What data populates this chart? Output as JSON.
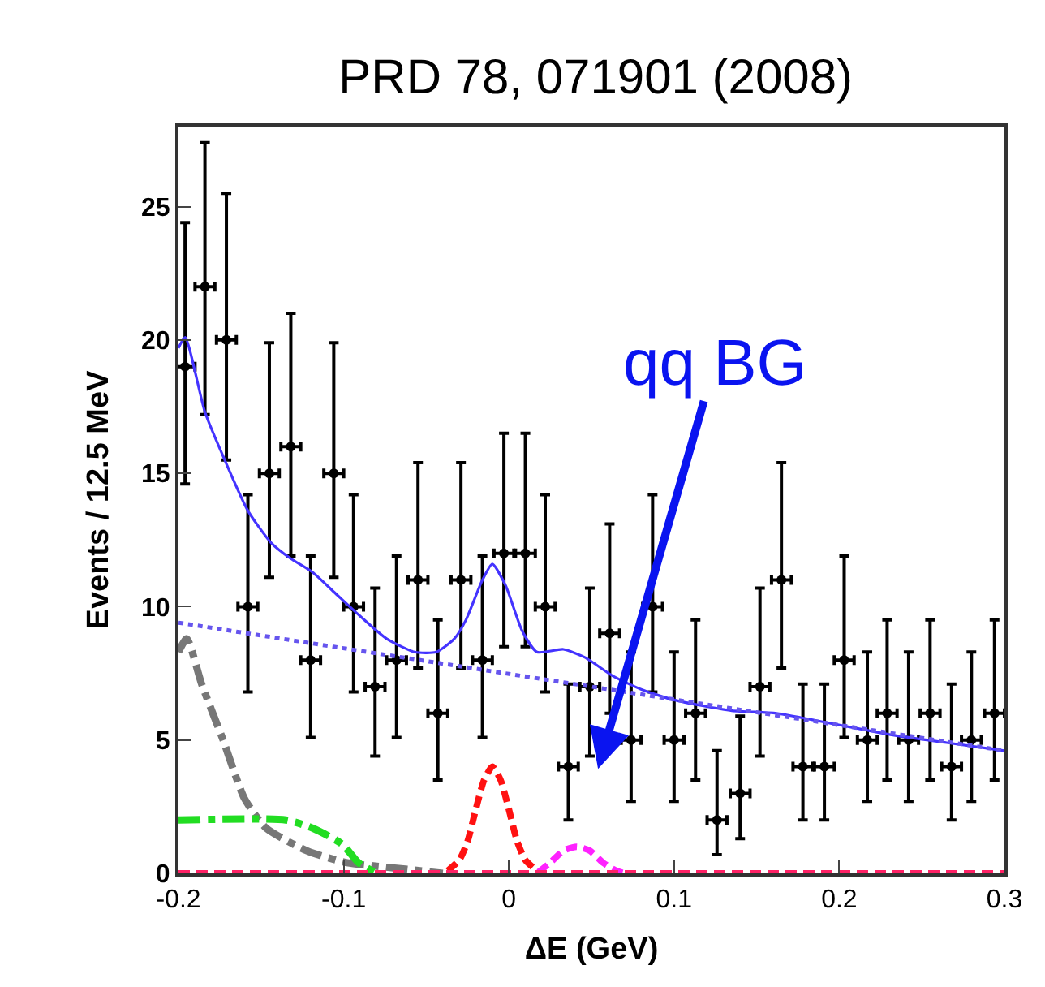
{
  "chart_data": {
    "type": "scatter",
    "title": "PRD 78, 071901 (2008)",
    "xlabel": "ΔE (GeV)",
    "ylabel": "Events / 12.5 MeV",
    "xlim": [
      -0.2,
      0.3
    ],
    "xticks": [
      -0.2,
      -0.1,
      0,
      0.1,
      0.2,
      0.3
    ],
    "ylim": [
      0,
      28
    ],
    "yticks": [
      0,
      5,
      10,
      15,
      20,
      25
    ],
    "annotations": [
      "qq BG"
    ],
    "series": [
      {
        "color": "#000000",
        "marker": "circle",
        "x": [
          -0.196,
          -0.184,
          -0.171,
          -0.158,
          -0.145,
          -0.132,
          -0.12,
          -0.106,
          -0.094,
          -0.081,
          -0.068,
          -0.055,
          -0.043,
          -0.029,
          -0.016,
          -0.003,
          0.01,
          0.022,
          0.036,
          0.049,
          0.061,
          0.074,
          0.087,
          0.1,
          0.113,
          0.126,
          0.14,
          0.152,
          0.165,
          0.178,
          0.191,
          0.203,
          0.217,
          0.229,
          0.242,
          0.255,
          0.268,
          0.28,
          0.294
        ],
        "values": [
          19,
          22,
          20,
          10,
          15,
          16,
          8,
          15,
          10,
          7,
          8,
          11,
          6,
          11,
          8,
          12,
          12,
          10,
          4,
          7,
          9,
          5,
          10,
          5,
          6,
          2,
          3,
          7,
          11,
          4,
          4,
          8,
          5,
          6,
          5,
          6,
          4,
          5,
          6
        ],
        "errors": [
          [
            14.6,
            24.4
          ],
          [
            17.2,
            27.4
          ],
          [
            15.5,
            25.5
          ],
          [
            6.8,
            14.2
          ],
          [
            11.1,
            19.9
          ],
          [
            11.9,
            21.0
          ],
          [
            5.1,
            11.9
          ],
          [
            11.1,
            19.9
          ],
          [
            6.8,
            14.2
          ],
          [
            4.4,
            10.7
          ],
          [
            5.1,
            11.9
          ],
          [
            7.7,
            15.4
          ],
          [
            3.5,
            9.5
          ],
          [
            7.7,
            15.4
          ],
          [
            5.1,
            11.9
          ],
          [
            8.5,
            16.5
          ],
          [
            8.5,
            16.5
          ],
          [
            6.8,
            14.2
          ],
          [
            2.0,
            7.1
          ],
          [
            4.4,
            10.7
          ],
          [
            6.0,
            13.1
          ],
          [
            2.7,
            8.3
          ],
          [
            6.8,
            14.2
          ],
          [
            2.7,
            8.3
          ],
          [
            3.5,
            9.5
          ],
          [
            0.7,
            4.6
          ],
          [
            1.3,
            5.9
          ],
          [
            4.4,
            10.7
          ],
          [
            7.7,
            15.4
          ],
          [
            2.0,
            7.1
          ],
          [
            2.0,
            7.1
          ],
          [
            5.1,
            11.9
          ],
          [
            2.7,
            8.3
          ],
          [
            3.5,
            9.5
          ],
          [
            2.7,
            8.3
          ],
          [
            3.5,
            9.5
          ],
          [
            2.0,
            7.1
          ],
          [
            2.7,
            8.3
          ],
          [
            3.5,
            9.5
          ]
        ],
        "xerrors": [
          0.006,
          0.006,
          0.006,
          0.006,
          0.006,
          0.006,
          0.006,
          0.006,
          0.006,
          0.006,
          0.006,
          0.006,
          0.006,
          0.006,
          0.006,
          0.006,
          0.006,
          0.006,
          0.006,
          0.006,
          0.006,
          0.006,
          0.006,
          0.006,
          0.006,
          0.006,
          0.006,
          0.006,
          0.006,
          0.006,
          0.006,
          0.006,
          0.006,
          0.006,
          0.006,
          0.006,
          0.006,
          0.006,
          0.006
        ]
      },
      {
        "type": "line",
        "color": "#4433ff",
        "line_style": "solid",
        "x": [
          -0.2,
          -0.196,
          -0.184,
          -0.172,
          -0.158,
          -0.144,
          -0.132,
          -0.119,
          -0.105,
          -0.091,
          -0.074,
          -0.057,
          -0.044,
          -0.033,
          -0.026,
          -0.016,
          -0.01,
          -0.002,
          0.008,
          0.017,
          0.033,
          0.046,
          0.063,
          0.08,
          0.1,
          0.135,
          0.162,
          0.197,
          0.231,
          0.265,
          0.3
        ],
        "values": [
          19.7,
          20.1,
          17.3,
          15.5,
          13.6,
          12.4,
          11.8,
          11.3,
          10.5,
          9.7,
          8.8,
          8.3,
          8.3,
          8.8,
          9.5,
          11.0,
          11.6,
          10.8,
          9.1,
          8.3,
          8.4,
          8.1,
          7.4,
          6.9,
          6.5,
          6.1,
          6.0,
          5.6,
          5.2,
          4.9,
          4.6
        ]
      },
      {
        "type": "line",
        "color": "#6655ee",
        "line_style": "dotted",
        "x": [
          -0.2,
          0.3
        ],
        "values": [
          9.4,
          4.6
        ]
      },
      {
        "type": "line",
        "color": "#777777",
        "line_style": "dashdot",
        "x": [
          -0.2,
          -0.195,
          -0.186,
          -0.173,
          -0.16,
          -0.147,
          -0.122,
          -0.098,
          -0.064,
          -0.04
        ],
        "values": [
          8.3,
          8.8,
          7.1,
          5.0,
          2.8,
          1.7,
          0.84,
          0.4,
          0.17,
          0
        ]
      },
      {
        "type": "line",
        "color": "#22dd22",
        "line_style": "dashdot",
        "x": [
          -0.2,
          -0.135,
          -0.119,
          -0.101,
          -0.091,
          -0.08
        ],
        "values": [
          2.0,
          2.0,
          1.7,
          1.1,
          0.4,
          0
        ]
      },
      {
        "type": "line",
        "color": "#ff1111",
        "line_style": "dashed",
        "x": [
          -0.037,
          -0.03,
          -0.025,
          -0.02,
          -0.015,
          -0.01,
          -0.005,
          0.0,
          0.005,
          0.01,
          0.017
        ],
        "values": [
          0.1,
          0.5,
          1.2,
          2.4,
          3.5,
          4.0,
          3.5,
          2.4,
          1.2,
          0.5,
          0.1
        ]
      },
      {
        "type": "line",
        "color": "#ff22ff",
        "line_style": "dashed",
        "x": [
          0.018,
          0.025,
          0.033,
          0.041,
          0.049,
          0.057,
          0.065,
          0.07
        ],
        "values": [
          0.05,
          0.4,
          0.85,
          1.0,
          0.85,
          0.4,
          0.1,
          0
        ]
      },
      {
        "type": "line",
        "color": "#ff2266",
        "line_style": "dashed",
        "x": [
          -0.2,
          0.3
        ],
        "values": [
          0,
          0
        ]
      }
    ]
  }
}
